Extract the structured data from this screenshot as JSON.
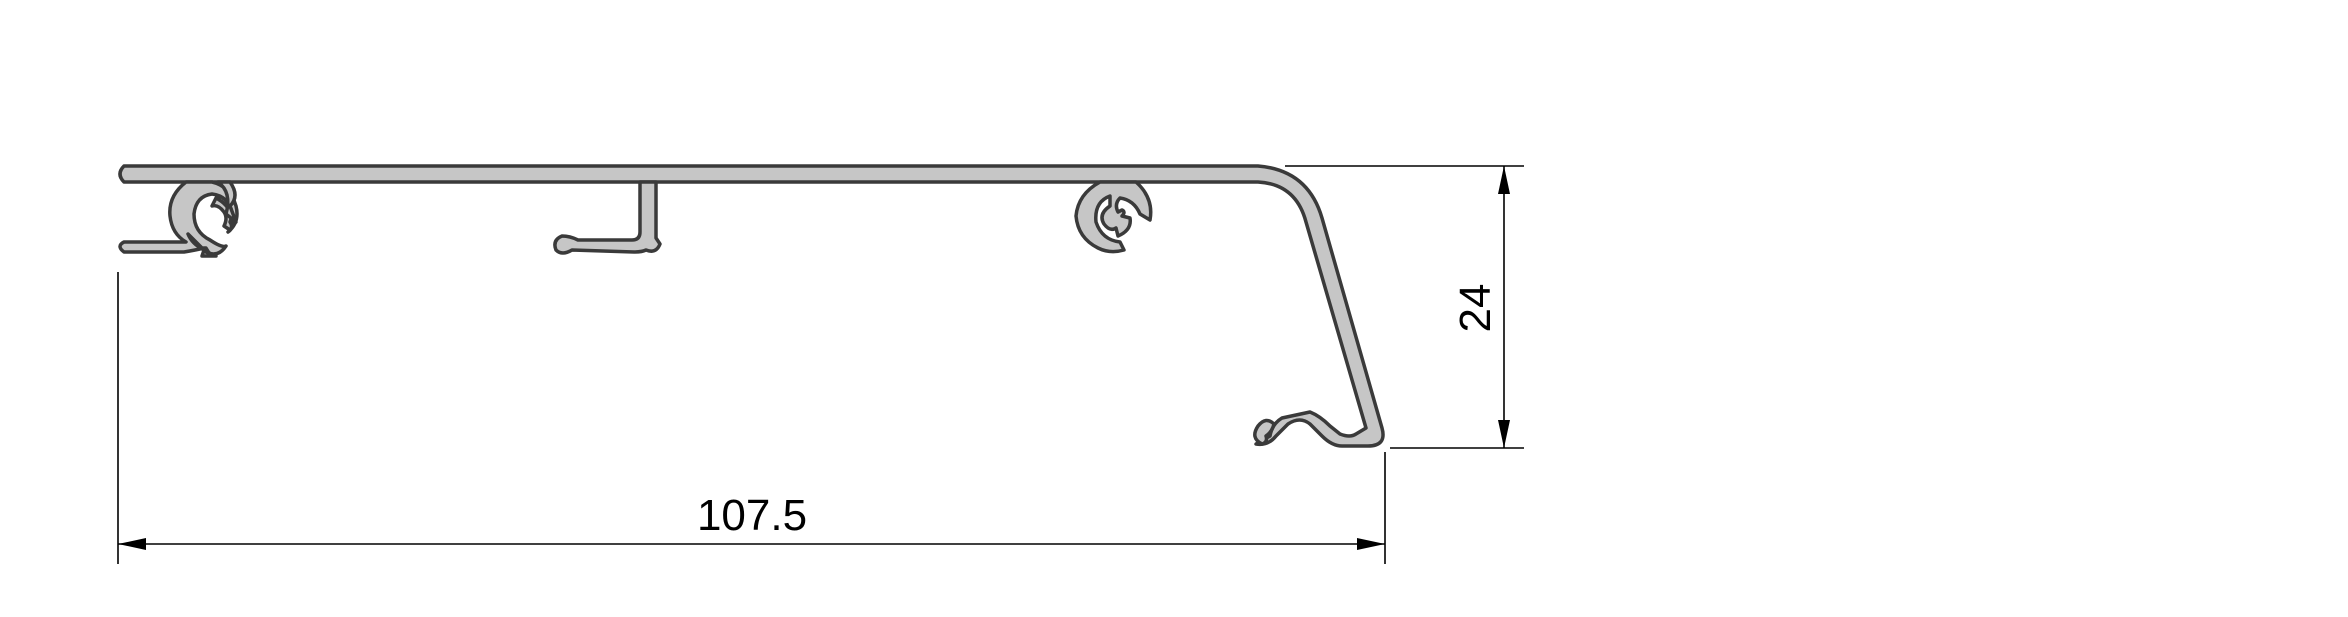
{
  "drawing": {
    "dimensions": {
      "width_label": "107.5",
      "height_label": "24"
    },
    "colors": {
      "profile_fill": "#c6c6c6",
      "profile_stroke": "#3a3a3a",
      "dimension": "#000000",
      "background": "#ffffff"
    }
  }
}
